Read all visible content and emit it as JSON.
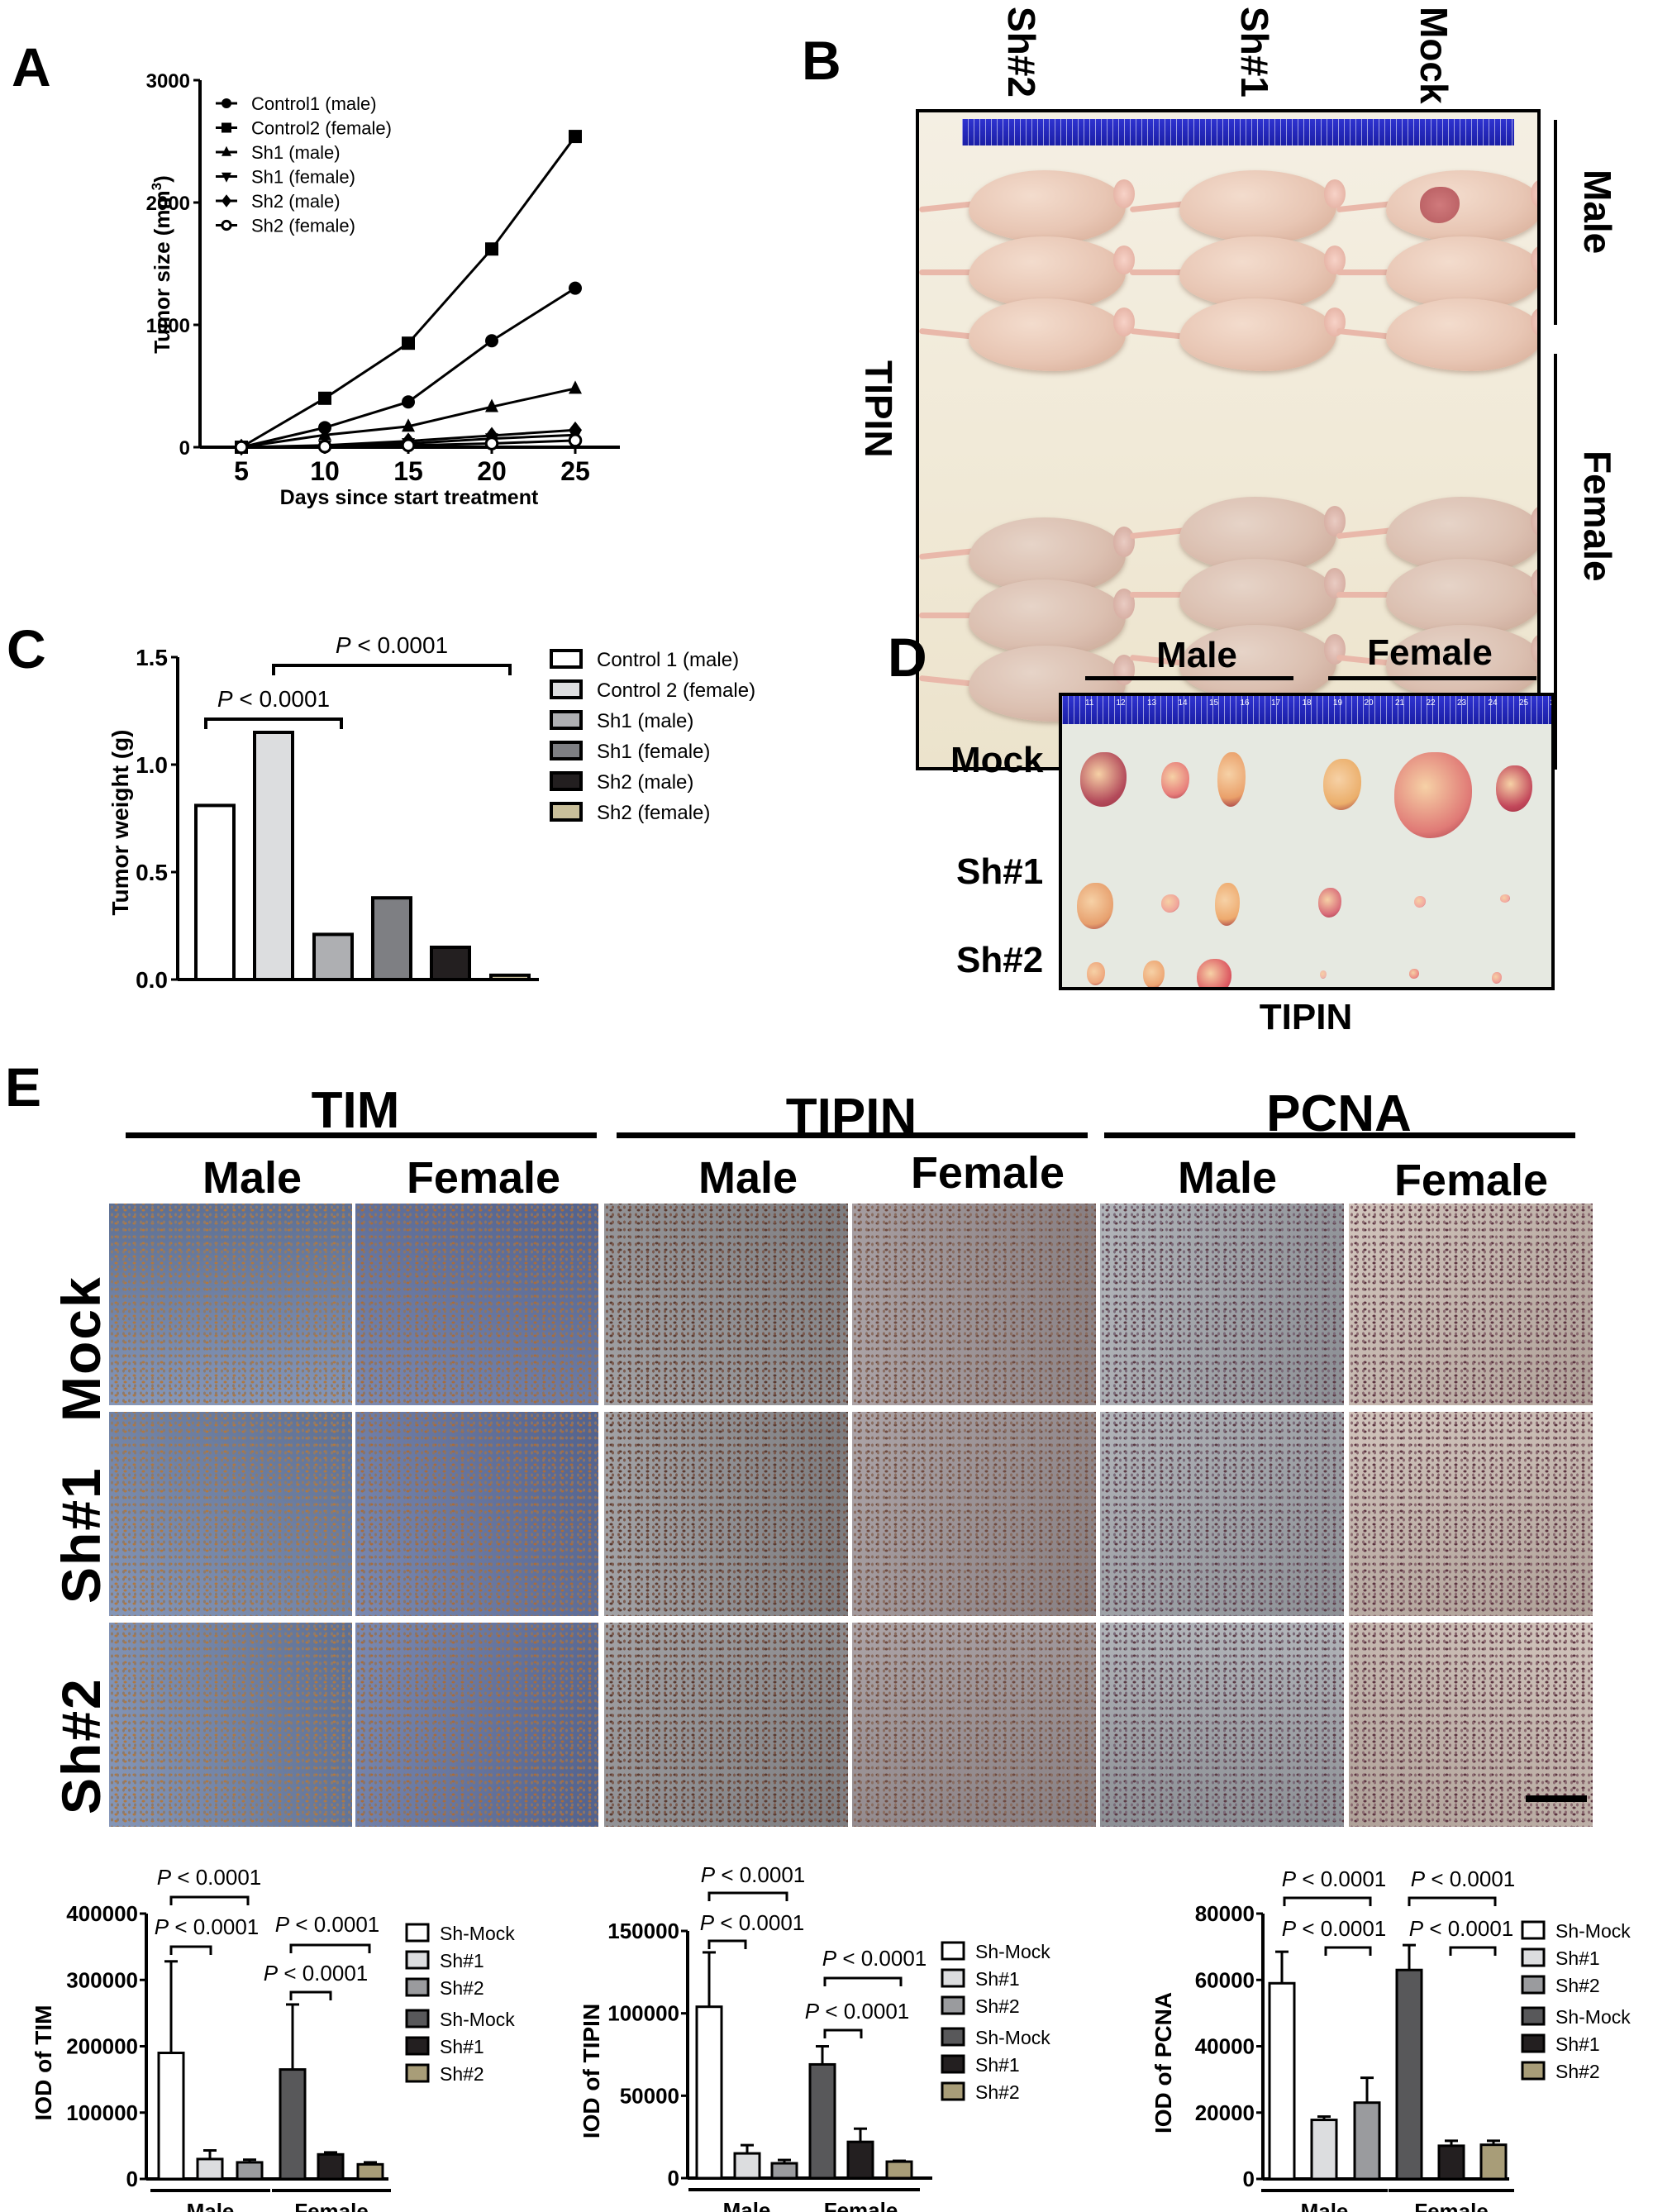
{
  "figure": {
    "panels": [
      "A",
      "B",
      "C",
      "D",
      "E"
    ]
  },
  "panel_a": {
    "letter": "A",
    "ylabel": "Tumor size (mm",
    "ylabel_sup": "3",
    "ylabel_close": ")",
    "xlabel": "Days since start treatment",
    "yticks": [
      "0",
      "1000",
      "2000",
      "3000"
    ],
    "xticks": [
      "5",
      "10",
      "15",
      "20",
      "25"
    ],
    "legend": [
      {
        "label": "Control1 (male)",
        "marker": "circle"
      },
      {
        "label": "Control2 (female)",
        "marker": "square"
      },
      {
        "label": "Sh1 (male)",
        "marker": "triangle-up"
      },
      {
        "label": "Sh1 (female)",
        "marker": "triangle-down"
      },
      {
        "label": "Sh2 (male)",
        "marker": "diamond"
      },
      {
        "label": "Sh2 (female)",
        "marker": "open-circle"
      }
    ]
  },
  "panel_b": {
    "letter": "B",
    "column_labels": [
      "Sh#2",
      "Sh#1",
      "Mock"
    ],
    "side_label": "TIPIN",
    "row_labels": [
      "Male",
      "Female"
    ]
  },
  "panel_c": {
    "letter": "C",
    "ylabel": "Tumor weight (g)",
    "yticks": [
      "0.0",
      "0.5",
      "1.0",
      "1.5"
    ],
    "p_values": [
      "P < 0.0001",
      "P < 0.0001"
    ],
    "legend": [
      {
        "label": "Control 1 (male)",
        "color": "#ffffff"
      },
      {
        "label": "Control 2 (female)",
        "color": "#dcdddf"
      },
      {
        "label": "Sh1 (male)",
        "color": "#aeafb2"
      },
      {
        "label": "Sh1 (female)",
        "color": "#7e7f83"
      },
      {
        "label": "Sh2 (male)",
        "color": "#231f20"
      },
      {
        "label": "Sh2 (female)",
        "color": "#c9bf9a"
      }
    ]
  },
  "panel_d": {
    "letter": "D",
    "group_labels": [
      "Male",
      "Female"
    ],
    "row_labels": [
      "Mock",
      "Sh#1",
      "Sh#2"
    ],
    "bottom_label": "TIPIN",
    "ruler_numbers": [
      "11",
      "12",
      "13",
      "14",
      "15",
      "16",
      "17",
      "18",
      "19",
      "20",
      "21",
      "22",
      "23",
      "24",
      "25",
      "26"
    ]
  },
  "panel_e": {
    "letter": "E",
    "markers": [
      "TIM",
      "TIPIN",
      "PCNA"
    ],
    "sexes": [
      "Male",
      "Female"
    ],
    "row_labels": [
      "Mock",
      "Sh#1",
      "Sh#2"
    ],
    "charts": [
      {
        "ylabel": "IOD of TIM",
        "yticks": [
          "0",
          "100000",
          "200000",
          "300000",
          "400000"
        ],
        "p_values": [
          "P < 0.0001",
          "P < 0.0001",
          "P < 0.0001",
          "P < 0.0001"
        ],
        "group_labels": [
          "Male",
          "Female"
        ]
      },
      {
        "ylabel": "IOD of TIPIN",
        "yticks": [
          "0",
          "50000",
          "100000",
          "150000"
        ],
        "p_values": [
          "P < 0.0001",
          "P < 0.0001",
          "P < 0.0001",
          "P < 0.0001"
        ],
        "group_labels": [
          "Male",
          "Female"
        ]
      },
      {
        "ylabel": "IOD of PCNA",
        "yticks": [
          "0",
          "20000",
          "40000",
          "60000",
          "80000"
        ],
        "p_values": [
          "P < 0.0001",
          "P < 0.0001",
          "P < 0.0001",
          "P < 0.0001"
        ],
        "group_labels": [
          "Male",
          "Female"
        ]
      }
    ],
    "legend": [
      {
        "label": "Sh-Mock",
        "color": "#ffffff"
      },
      {
        "label": "Sh#1",
        "color": "#dcdddf"
      },
      {
        "label": "Sh#2",
        "color": "#9a9b9e"
      },
      {
        "label": "Sh-Mock",
        "color": "#58585a"
      },
      {
        "label": "Sh#1",
        "color": "#231f20"
      },
      {
        "label": "Sh#2",
        "color": "#a89d78"
      }
    ]
  },
  "chart_data": [
    {
      "type": "line",
      "title": "A",
      "xlabel": "Days since start treatment",
      "ylabel": "Tumor size (mm3)",
      "x": [
        5,
        10,
        15,
        20,
        25
      ],
      "ylim": [
        0,
        3000
      ],
      "grid": false,
      "legend_position": "upper-left",
      "series": [
        {
          "name": "Control1 (male)",
          "values": [
            0,
            160,
            370,
            870,
            1300
          ]
        },
        {
          "name": "Control2 (female)",
          "values": [
            0,
            400,
            850,
            1620,
            2540
          ]
        },
        {
          "name": "Sh1 (male)",
          "values": [
            0,
            100,
            170,
            330,
            480
          ]
        },
        {
          "name": "Sh1 (female)",
          "values": [
            0,
            10,
            30,
            70,
            100
          ]
        },
        {
          "name": "Sh2 (male)",
          "values": [
            0,
            15,
            50,
            95,
            140
          ]
        },
        {
          "name": "Sh2 (female)",
          "values": [
            0,
            5,
            15,
            30,
            55
          ]
        }
      ]
    },
    {
      "type": "bar",
      "title": "C",
      "ylabel": "Tumor weight (g)",
      "categories": [
        "Control 1 (male)",
        "Control 2 (female)",
        "Sh1 (male)",
        "Sh1 (female)",
        "Sh2 (male)",
        "Sh2 (female)"
      ],
      "values": [
        0.81,
        1.15,
        0.21,
        0.38,
        0.15,
        0.02
      ],
      "ylim": [
        0,
        1.5
      ],
      "annotations": [
        {
          "text": "P < 0.0001",
          "from": "Control 1 (male)",
          "to": "Sh1 (male)"
        },
        {
          "text": "P < 0.0001",
          "from": "Control 2 (female)",
          "to": "Sh2 (female)"
        }
      ]
    },
    {
      "type": "bar",
      "title": "E - IOD of TIM",
      "ylabel": "IOD of TIM",
      "categories": [
        "Male",
        "Female"
      ],
      "ylim": [
        0,
        400000
      ],
      "series": [
        {
          "name": "Sh-Mock",
          "values": [
            190000,
            165000
          ],
          "error": [
            138000,
            98000
          ]
        },
        {
          "name": "Sh#1",
          "values": [
            30000,
            37000
          ],
          "error": [
            13000,
            3000
          ]
        },
        {
          "name": "Sh#2",
          "values": [
            25000,
            22000
          ],
          "error": [
            4000,
            3000
          ]
        }
      ]
    },
    {
      "type": "bar",
      "title": "E - IOD of TIPIN",
      "ylabel": "IOD of TIPIN",
      "categories": [
        "Male",
        "Female"
      ],
      "ylim": [
        0,
        150000
      ],
      "series": [
        {
          "name": "Sh-Mock",
          "values": [
            104000,
            69000
          ],
          "error": [
            33000,
            11000
          ]
        },
        {
          "name": "Sh#1",
          "values": [
            15000,
            22000
          ],
          "error": [
            5000,
            8000
          ]
        },
        {
          "name": "Sh#2",
          "values": [
            9000,
            10000
          ],
          "error": [
            2000,
            500
          ]
        }
      ]
    },
    {
      "type": "bar",
      "title": "E - IOD of PCNA",
      "ylabel": "IOD of PCNA",
      "categories": [
        "Male",
        "Female"
      ],
      "ylim": [
        0,
        80000
      ],
      "series": [
        {
          "name": "Sh-Mock",
          "values": [
            59000,
            63000
          ],
          "error": [
            9500,
            7500
          ]
        },
        {
          "name": "Sh#1",
          "values": [
            17800,
            10000
          ],
          "error": [
            1000,
            1500
          ]
        },
        {
          "name": "Sh#2",
          "values": [
            23000,
            10300
          ],
          "error": [
            7500,
            1200
          ]
        }
      ]
    }
  ]
}
